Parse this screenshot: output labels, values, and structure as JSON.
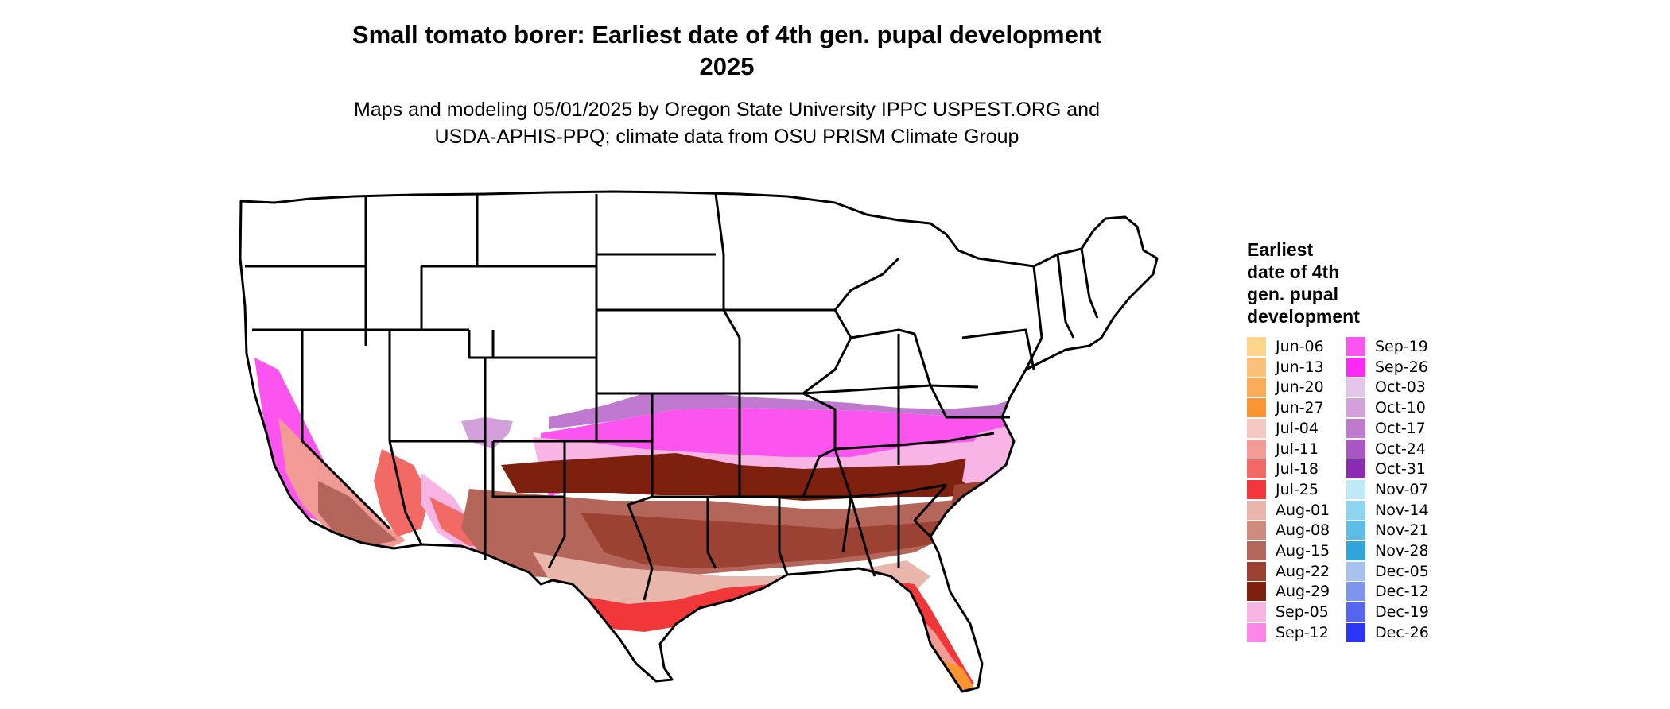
{
  "title": {
    "line1": "Small tomato borer: Earliest date of 4th gen. pupal development",
    "line2": "2025"
  },
  "subtitle": {
    "line1": "Maps and modeling 05/01/2025 by Oregon State University IPPC USPEST.ORG and",
    "line2": "USDA-APHIS-PPQ; climate data from OSU PRISM Climate Group"
  },
  "legend": {
    "title_lines": [
      "Earliest",
      "date of 4th",
      "gen. pupal",
      "development"
    ],
    "items": [
      {
        "label": "Jun-06",
        "color": "#fdd68c"
      },
      {
        "label": "Jun-13",
        "color": "#fcc178"
      },
      {
        "label": "Jun-20",
        "color": "#fbaa57"
      },
      {
        "label": "Jun-27",
        "color": "#f99633"
      },
      {
        "label": "Jul-04",
        "color": "#f5c8c4"
      },
      {
        "label": "Jul-11",
        "color": "#f29b96"
      },
      {
        "label": "Jul-18",
        "color": "#f26a66"
      },
      {
        "label": "Jul-25",
        "color": "#f2373a"
      },
      {
        "label": "Aug-01",
        "color": "#e8b6aa"
      },
      {
        "label": "Aug-08",
        "color": "#cf8c7e"
      },
      {
        "label": "Aug-15",
        "color": "#b5665a"
      },
      {
        "label": "Aug-22",
        "color": "#9c4232"
      },
      {
        "label": "Aug-29",
        "color": "#7d200d"
      },
      {
        "label": "Sep-05",
        "color": "#f9b4e6"
      },
      {
        "label": "Sep-12",
        "color": "#fb86e6"
      },
      {
        "label": "Sep-19",
        "color": "#fb54ef"
      },
      {
        "label": "Sep-26",
        "color": "#f92af5"
      },
      {
        "label": "Oct-03",
        "color": "#e3c4ea"
      },
      {
        "label": "Oct-10",
        "color": "#d3a0dc"
      },
      {
        "label": "Oct-17",
        "color": "#bf7ad0"
      },
      {
        "label": "Oct-24",
        "color": "#a955c3"
      },
      {
        "label": "Oct-31",
        "color": "#8b2bb1"
      },
      {
        "label": "Nov-07",
        "color": "#bfeaf9"
      },
      {
        "label": "Nov-14",
        "color": "#8cd4f0"
      },
      {
        "label": "Nov-21",
        "color": "#5ebde8"
      },
      {
        "label": "Nov-28",
        "color": "#2fa5dc"
      },
      {
        "label": "Dec-05",
        "color": "#a6c0ef"
      },
      {
        "label": "Dec-12",
        "color": "#7d95ec"
      },
      {
        "label": "Dec-19",
        "color": "#5567f0"
      },
      {
        "label": "Dec-26",
        "color": "#2b35f7"
      }
    ]
  }
}
